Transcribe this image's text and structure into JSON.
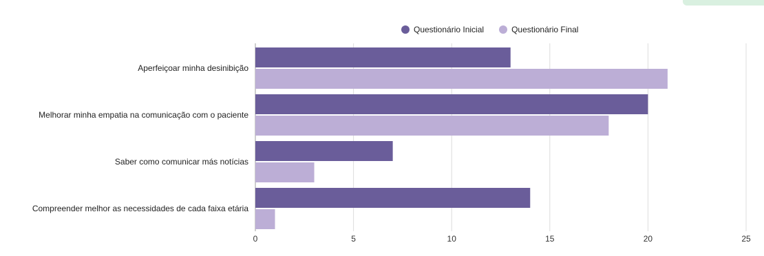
{
  "chart_data": {
    "type": "bar",
    "orientation": "horizontal",
    "categories": [
      "Aperfeiçoar minha desinibição",
      "Melhorar minha empatia na comunicação com o paciente",
      "Saber como comunicar más notícias",
      "Compreender melhor as necessidades de cada faixa etária"
    ],
    "series": [
      {
        "name": "Questionário Inicial",
        "color": "#6a5d9a",
        "values": [
          13,
          20,
          7,
          14
        ]
      },
      {
        "name": "Questionário Final",
        "color": "#bcaed6",
        "values": [
          21,
          18,
          3,
          1
        ]
      }
    ],
    "xlim": [
      0,
      25
    ],
    "xticks": [
      0,
      5,
      10,
      15,
      20,
      25
    ],
    "xtick_labels": [
      "0",
      "5",
      "10",
      "15",
      "20",
      "25"
    ],
    "grid": true,
    "legend_position": "top-center"
  }
}
